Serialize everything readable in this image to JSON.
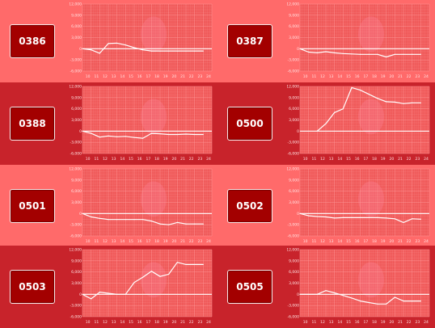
{
  "colors": {
    "row_light": "#ff6a6a",
    "row_dark": "#c8232b",
    "button_bg": "#a30000",
    "chart_bg": "#f05a5a",
    "chart_grid": "#ff9a9a",
    "chart_line": "#ffffff"
  },
  "tiles": [
    {
      "code": "0386"
    },
    {
      "code": "0387"
    },
    {
      "code": "0388"
    },
    {
      "code": "0500"
    },
    {
      "code": "0501"
    },
    {
      "code": "0502"
    },
    {
      "code": "0503"
    },
    {
      "code": "0505"
    }
  ],
  "chart_data": [
    {
      "type": "line",
      "x": [
        9,
        10,
        11,
        12,
        13,
        14,
        15,
        16,
        17,
        18,
        19,
        20,
        21,
        22,
        23
      ],
      "y": [
        0,
        -300,
        -1200,
        1400,
        1500,
        1000,
        300,
        -300,
        -600,
        -600,
        -600,
        -600,
        -600,
        -600,
        -600
      ],
      "x_ticks": [
        "10",
        "11",
        "12",
        "13",
        "14",
        "15",
        "16",
        "17",
        "18",
        "19",
        "20",
        "21",
        "22",
        "23",
        "24"
      ],
      "y_ticks": [
        "12,000",
        "9,000",
        "6,000",
        "3,000",
        "0",
        "-3,000",
        "-6,000"
      ],
      "ylim": [
        -6000,
        12000
      ],
      "xlim": [
        9,
        24
      ],
      "grid": true
    },
    {
      "type": "line",
      "x": [
        9,
        10,
        11,
        12,
        13,
        14,
        15,
        16,
        17,
        18,
        19,
        20,
        21,
        22,
        23
      ],
      "y": [
        0,
        -900,
        -1100,
        -800,
        -1100,
        -1300,
        -1400,
        -1500,
        -1500,
        -1500,
        -2200,
        -1500,
        -1500,
        -1500,
        -1500
      ],
      "x_ticks": [
        "10",
        "11",
        "12",
        "13",
        "14",
        "15",
        "16",
        "17",
        "18",
        "19",
        "20",
        "21",
        "22",
        "23",
        "24"
      ],
      "y_ticks": [
        "12,000",
        "9,000",
        "6,000",
        "3,000",
        "0",
        "-3,000",
        "-6,000"
      ],
      "ylim": [
        -6000,
        12000
      ],
      "xlim": [
        9,
        24
      ],
      "grid": true
    },
    {
      "type": "line",
      "x": [
        9,
        10,
        11,
        12,
        13,
        14,
        15,
        16,
        17,
        18,
        19,
        20,
        21,
        22,
        23
      ],
      "y": [
        0,
        -600,
        -1600,
        -1300,
        -1500,
        -1400,
        -1700,
        -1900,
        -600,
        -700,
        -900,
        -900,
        -800,
        -900,
        -900
      ],
      "x_ticks": [
        "10",
        "11",
        "12",
        "13",
        "14",
        "15",
        "16",
        "17",
        "18",
        "19",
        "20",
        "21",
        "22",
        "23",
        "24"
      ],
      "y_ticks": [
        "12,000",
        "9,000",
        "6,000",
        "3,000",
        "0",
        "-3,000",
        "-6,000"
      ],
      "ylim": [
        -6000,
        12000
      ],
      "xlim": [
        9,
        24
      ],
      "grid": true
    },
    {
      "type": "line",
      "x": [
        11,
        12,
        13,
        14,
        15,
        16,
        17,
        18,
        19,
        20,
        21,
        22,
        23
      ],
      "y": [
        0,
        2000,
        5000,
        6000,
        11700,
        11000,
        9900,
        8800,
        7900,
        7800,
        7400,
        7600,
        7600
      ],
      "x_ticks": [
        "10",
        "11",
        "12",
        "13",
        "14",
        "15",
        "16",
        "17",
        "18",
        "19",
        "20",
        "21",
        "22",
        "23",
        "24"
      ],
      "y_ticks": [
        "12,000",
        "9,000",
        "6,000",
        "3,000",
        "0",
        "-3,000",
        "-6,000"
      ],
      "ylim": [
        -6000,
        12000
      ],
      "xlim": [
        9,
        24
      ],
      "grid": true
    },
    {
      "type": "line",
      "x": [
        9,
        10,
        11,
        12,
        13,
        14,
        15,
        16,
        17,
        18,
        19,
        20,
        21,
        22,
        23
      ],
      "y": [
        0,
        -900,
        -1300,
        -1600,
        -1600,
        -1600,
        -1600,
        -1600,
        -2000,
        -2800,
        -3000,
        -2400,
        -2800,
        -2800,
        -2800
      ],
      "x_ticks": [
        "10",
        "11",
        "12",
        "13",
        "14",
        "15",
        "16",
        "17",
        "18",
        "19",
        "20",
        "21",
        "22",
        "23",
        "24"
      ],
      "y_ticks": [
        "12,000",
        "9,000",
        "6,000",
        "3,000",
        "0",
        "-3,000",
        "-6,000"
      ],
      "ylim": [
        -6000,
        12000
      ],
      "xlim": [
        9,
        24
      ],
      "grid": true
    },
    {
      "type": "line",
      "x": [
        9,
        10,
        11,
        12,
        13,
        14,
        15,
        16,
        17,
        18,
        19,
        20,
        21,
        22,
        23
      ],
      "y": [
        0,
        -600,
        -800,
        -900,
        -1200,
        -1100,
        -1100,
        -1100,
        -1100,
        -1100,
        -1200,
        -1400,
        -2400,
        -1400,
        -1500
      ],
      "x_ticks": [
        "10",
        "11",
        "12",
        "13",
        "14",
        "15",
        "16",
        "17",
        "18",
        "19",
        "20",
        "21",
        "22",
        "23",
        "24"
      ],
      "y_ticks": [
        "12,000",
        "9,000",
        "6,000",
        "3,000",
        "0",
        "-3,000",
        "-6,000"
      ],
      "ylim": [
        -6000,
        12000
      ],
      "xlim": [
        9,
        24
      ],
      "grid": true
    },
    {
      "type": "line",
      "x": [
        9,
        10,
        11,
        12,
        13,
        14,
        15,
        16,
        17,
        18,
        19,
        20,
        21,
        22,
        23
      ],
      "y": [
        0,
        -1200,
        600,
        300,
        0,
        0,
        3200,
        4600,
        6200,
        4800,
        5400,
        8600,
        8000,
        8000,
        8000
      ],
      "x_ticks": [
        "10",
        "11",
        "12",
        "13",
        "14",
        "15",
        "16",
        "17",
        "18",
        "19",
        "20",
        "21",
        "22",
        "23",
        "24"
      ],
      "y_ticks": [
        "12,000",
        "9,000",
        "6,000",
        "3,000",
        "0",
        "-3,000",
        "-6,000"
      ],
      "ylim": [
        -6000,
        12000
      ],
      "xlim": [
        9,
        24
      ],
      "grid": true
    },
    {
      "type": "line",
      "x": [
        9,
        10,
        11,
        12,
        13,
        14,
        15,
        16,
        17,
        18,
        19,
        20,
        21,
        22,
        23
      ],
      "y": [
        0,
        0,
        0,
        1000,
        400,
        -300,
        -1000,
        -1800,
        -2200,
        -2600,
        -2600,
        -800,
        -1800,
        -1800,
        -1800
      ],
      "x_ticks": [
        "10",
        "11",
        "12",
        "13",
        "14",
        "15",
        "16",
        "17",
        "18",
        "19",
        "20",
        "21",
        "22",
        "23",
        "24"
      ],
      "y_ticks": [
        "12,000",
        "9,000",
        "6,000",
        "3,000",
        "0",
        "-3,000",
        "-6,000"
      ],
      "ylim": [
        -6000,
        12000
      ],
      "xlim": [
        9,
        24
      ],
      "grid": true
    }
  ]
}
